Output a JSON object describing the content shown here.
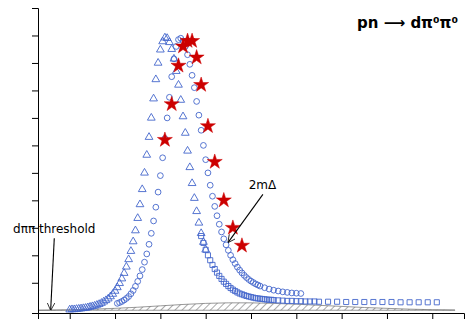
{
  "chart_data": {
    "type": "scatter",
    "title": "pn ⟶ dπ⁰π⁰",
    "xlim": [
      0.08,
      1.02
    ],
    "ylim": [
      -0.01,
      1.1
    ],
    "xticks": [
      0.15,
      0.25,
      0.35,
      0.45,
      0.55,
      0.65,
      0.75,
      0.85,
      0.95
    ],
    "yticks": [
      0.1,
      0.2,
      0.3,
      0.4,
      0.5,
      0.6,
      0.7,
      0.8,
      0.9,
      1.0
    ],
    "tick_labels": false,
    "grid": false,
    "series": [
      {
        "type": "area",
        "color": "#555555",
        "x": [
          0.08,
          0.12,
          0.16,
          0.2,
          0.25,
          0.3,
          0.35,
          0.4,
          0.45,
          0.5,
          0.55,
          0.6,
          0.65,
          0.7,
          0.75,
          0.8,
          0.85,
          0.9,
          0.95,
          1.0
        ],
        "values": [
          0.0,
          0.001,
          0.002,
          0.004,
          0.007,
          0.011,
          0.016,
          0.021,
          0.025,
          0.027,
          0.027,
          0.025,
          0.022,
          0.018,
          0.014,
          0.01,
          0.007,
          0.004,
          0.002,
          0.001
        ]
      },
      {
        "type": "scatter",
        "marker": "circle",
        "color": "#4466cc",
        "x": [
          0.255,
          0.26,
          0.265,
          0.27,
          0.275,
          0.28,
          0.285,
          0.29,
          0.295,
          0.3,
          0.305,
          0.31,
          0.315,
          0.32,
          0.325,
          0.33,
          0.335,
          0.34,
          0.345,
          0.35,
          0.355,
          0.36,
          0.365,
          0.37,
          0.375,
          0.38,
          0.385,
          0.39,
          0.395,
          0.4,
          0.405,
          0.41,
          0.415,
          0.42,
          0.425,
          0.43,
          0.435,
          0.44,
          0.445,
          0.45,
          0.455,
          0.46,
          0.465,
          0.47,
          0.475,
          0.48,
          0.485,
          0.49,
          0.495,
          0.5,
          0.505,
          0.51,
          0.515,
          0.52,
          0.525,
          0.53,
          0.535,
          0.54,
          0.545,
          0.55,
          0.555,
          0.56,
          0.565,
          0.57,
          0.58,
          0.59,
          0.6,
          0.61,
          0.62,
          0.63,
          0.64,
          0.65,
          0.66
        ],
        "values": [
          0.025,
          0.028,
          0.032,
          0.037,
          0.043,
          0.05,
          0.06,
          0.072,
          0.087,
          0.105,
          0.125,
          0.148,
          0.175,
          0.205,
          0.24,
          0.28,
          0.325,
          0.375,
          0.43,
          0.49,
          0.555,
          0.625,
          0.7,
          0.775,
          0.85,
          0.915,
          0.96,
          0.985,
          0.99,
          0.98,
          0.96,
          0.93,
          0.895,
          0.855,
          0.81,
          0.76,
          0.71,
          0.655,
          0.6,
          0.548,
          0.5,
          0.455,
          0.415,
          0.378,
          0.344,
          0.313,
          0.285,
          0.26,
          0.238,
          0.218,
          0.2,
          0.184,
          0.17,
          0.157,
          0.146,
          0.136,
          0.127,
          0.119,
          0.112,
          0.106,
          0.101,
          0.096,
          0.092,
          0.088,
          0.082,
          0.077,
          0.073,
          0.07,
          0.067,
          0.065,
          0.063,
          0.062,
          0.061
        ]
      },
      {
        "type": "scatter",
        "marker": "triangle",
        "color": "#4466cc",
        "x": [
          0.15,
          0.155,
          0.16,
          0.165,
          0.17,
          0.175,
          0.18,
          0.185,
          0.19,
          0.195,
          0.2,
          0.205,
          0.21,
          0.215,
          0.22,
          0.225,
          0.23,
          0.235,
          0.24,
          0.245,
          0.25,
          0.255,
          0.26,
          0.265,
          0.27,
          0.275,
          0.28,
          0.285,
          0.29,
          0.295,
          0.3,
          0.305,
          0.31,
          0.315,
          0.32,
          0.325,
          0.33,
          0.335,
          0.34,
          0.345,
          0.35,
          0.355,
          0.36,
          0.365,
          0.37,
          0.375,
          0.38,
          0.385,
          0.39,
          0.395,
          0.4,
          0.405,
          0.41,
          0.415,
          0.42,
          0.425,
          0.43,
          0.435,
          0.44,
          0.445,
          0.45
        ],
        "values": [
          0.002,
          0.003,
          0.003,
          0.004,
          0.005,
          0.006,
          0.007,
          0.008,
          0.01,
          0.012,
          0.014,
          0.016,
          0.019,
          0.022,
          0.026,
          0.031,
          0.036,
          0.042,
          0.05,
          0.059,
          0.07,
          0.083,
          0.098,
          0.115,
          0.135,
          0.158,
          0.185,
          0.215,
          0.25,
          0.29,
          0.335,
          0.385,
          0.44,
          0.5,
          0.565,
          0.63,
          0.7,
          0.77,
          0.84,
          0.9,
          0.948,
          0.978,
          0.992,
          0.99,
          0.975,
          0.95,
          0.915,
          0.87,
          0.82,
          0.765,
          0.705,
          0.645,
          0.58,
          0.52,
          0.462,
          0.408,
          0.36,
          0.318,
          0.28,
          0.248,
          0.22
        ]
      },
      {
        "type": "scatter",
        "marker": "square",
        "color": "#4466cc",
        "x": [
          0.44,
          0.445,
          0.45,
          0.455,
          0.46,
          0.465,
          0.47,
          0.475,
          0.48,
          0.485,
          0.49,
          0.495,
          0.5,
          0.505,
          0.51,
          0.515,
          0.52,
          0.525,
          0.53,
          0.535,
          0.54,
          0.545,
          0.55,
          0.555,
          0.56,
          0.565,
          0.57,
          0.575,
          0.58,
          0.585,
          0.59,
          0.595,
          0.6,
          0.61,
          0.62,
          0.63,
          0.64,
          0.65,
          0.66,
          0.67,
          0.68,
          0.69,
          0.7,
          0.72,
          0.74,
          0.76,
          0.78,
          0.8,
          0.82,
          0.84,
          0.86,
          0.88,
          0.9,
          0.92,
          0.94,
          0.96
        ],
        "values": [
          0.27,
          0.245,
          0.22,
          0.2,
          0.182,
          0.165,
          0.15,
          0.137,
          0.125,
          0.114,
          0.104,
          0.096,
          0.088,
          0.081,
          0.075,
          0.07,
          0.065,
          0.061,
          0.058,
          0.055,
          0.052,
          0.05,
          0.048,
          0.046,
          0.044,
          0.043,
          0.042,
          0.041,
          0.04,
          0.039,
          0.038,
          0.038,
          0.037,
          0.036,
          0.035,
          0.034,
          0.034,
          0.033,
          0.033,
          0.032,
          0.032,
          0.032,
          0.031,
          0.031,
          0.031,
          0.03,
          0.03,
          0.03,
          0.03,
          0.03,
          0.03,
          0.029,
          0.029,
          0.029,
          0.029,
          0.029
        ]
      },
      {
        "type": "scatter",
        "marker": "star",
        "color": "#cc0000",
        "x": [
          0.36,
          0.375,
          0.39,
          0.4,
          0.41,
          0.42,
          0.43,
          0.44,
          0.455,
          0.47,
          0.49,
          0.51,
          0.53
        ],
        "values": [
          0.62,
          0.75,
          0.89,
          0.96,
          0.98,
          0.98,
          0.92,
          0.82,
          0.67,
          0.54,
          0.4,
          0.3,
          0.235
        ]
      }
    ],
    "annotations": [
      {
        "text": "2mΔ",
        "x": 0.545,
        "y": 0.44,
        "arrow_x": 0.5,
        "arrow_y": 0.248
      },
      {
        "text": "dππ threshold",
        "x": 0.025,
        "y": 0.28,
        "arrow_x": 0.108,
        "arrow_y": 0.002
      }
    ]
  }
}
